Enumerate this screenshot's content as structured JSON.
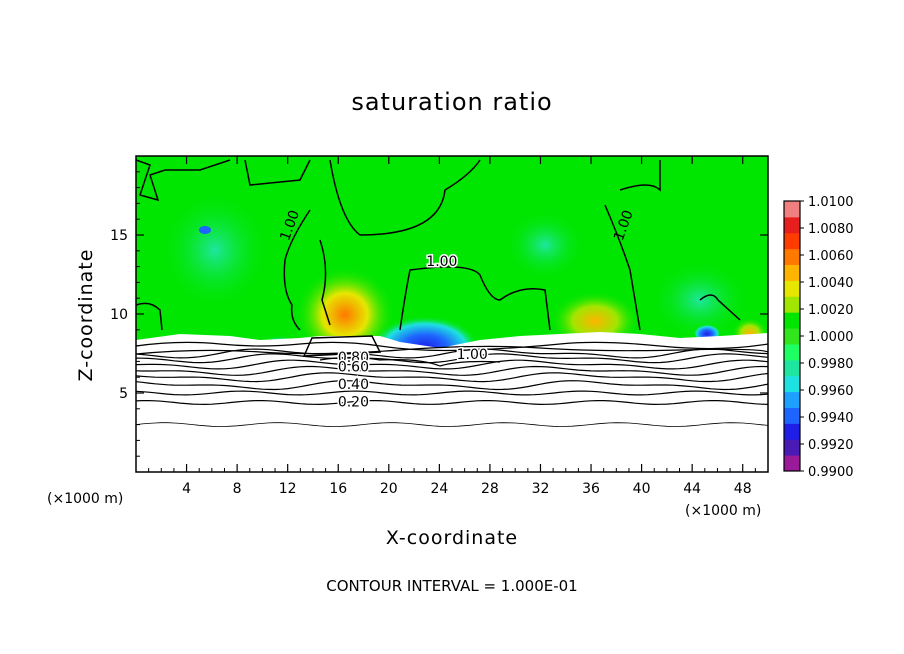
{
  "chart_data": {
    "type": "heatmap",
    "title": "saturation ratio",
    "xlabel": "X-coordinate",
    "ylabel": "Z-coordinate",
    "x_unit_label": "(×1000 m)",
    "note": "CONTOUR INTERVAL = 1.000E-01",
    "xlim": [
      0,
      50
    ],
    "ylim": [
      0,
      20
    ],
    "x_ticks": [
      4,
      8,
      12,
      16,
      20,
      24,
      28,
      32,
      36,
      40,
      44,
      48
    ],
    "y_ticks": [
      5,
      10,
      15
    ],
    "colorbar": {
      "range": [
        0.99,
        1.01
      ],
      "tick_labels": [
        "1.0100",
        "1.0080",
        "1.0060",
        "1.0040",
        "1.0020",
        "1.0000",
        "0.9980",
        "0.9960",
        "0.9940",
        "0.9920",
        "0.9900"
      ],
      "colors": [
        "#9a1a9a",
        "#4a1ab4",
        "#1e1ee6",
        "#1e64ff",
        "#1ea0ff",
        "#1ee1e1",
        "#1ee6a0",
        "#1eff64",
        "#32e61e",
        "#00e600",
        "#a0e600",
        "#e6e600",
        "#ffb400",
        "#ff7800",
        "#ff3c00",
        "#e61e1e",
        "#f08080"
      ]
    },
    "contour_labels": [
      {
        "text": "1.00",
        "x": 12.2,
        "z": 15.6
      },
      {
        "text": "1.00",
        "x": 24.2,
        "z": 13.3
      },
      {
        "text": "1.00",
        "x": 38.6,
        "z": 15.6
      },
      {
        "text": "1.00",
        "x": 26.6,
        "z": 7.4
      },
      {
        "text": "0.80",
        "x": 17.2,
        "z": 7.2
      },
      {
        "text": "0.60",
        "x": 17.2,
        "z": 6.6
      },
      {
        "text": "0.40",
        "x": 17.2,
        "z": 5.5
      },
      {
        "text": "0.20",
        "x": 17.2,
        "z": 4.4
      }
    ],
    "contour_lines_z": [
      3.0,
      4.4,
      5.0,
      5.5,
      6.0,
      6.4,
      6.8,
      7.2,
      7.5
    ]
  }
}
